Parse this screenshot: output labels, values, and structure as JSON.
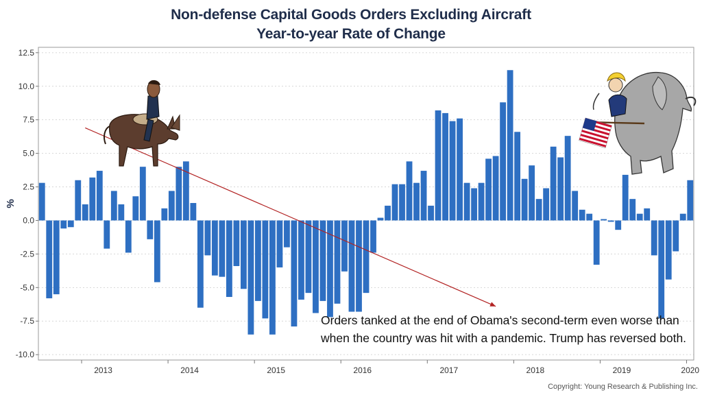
{
  "header": {
    "title": "Non-defense Capital Goods Orders Excluding Aircraft",
    "subtitle": "Year-to-year Rate of Change"
  },
  "annotation": "Orders tanked at the end of Obama's second-term even worse than when the country was hit with a pandemic. Trump has reversed both.",
  "copyright": "Copyright: Young Research & Publishing Inc.",
  "colors": {
    "bar": "#2e6fc2",
    "trend": "#b22222",
    "title": "#1f2d4a"
  },
  "illustrations": [
    "donkey-rider-cartoon",
    "elephant-flag-cartoon"
  ],
  "chart_data": {
    "type": "bar",
    "title": "Non-defense Capital Goods Orders Excluding Aircraft",
    "subtitle": "Year-to-year Rate of Change",
    "ylabel": "%",
    "xlabel": "",
    "ylim": [
      -10.4,
      12.9
    ],
    "yticks": [
      12.5,
      10.0,
      7.5,
      5.0,
      2.5,
      0.0,
      -2.5,
      -5.0,
      -7.5,
      -10.0
    ],
    "ytick_labels": [
      "12.5",
      "10.0",
      "7.5",
      "5.0",
      "2.5",
      "0.0",
      "-2.5",
      "-5.0",
      "-7.5",
      "-10.0"
    ],
    "grid": true,
    "start": "2012-07",
    "x_labels": [
      "2013",
      "2014",
      "2015",
      "2016",
      "2017",
      "2018",
      "2019",
      "2020"
    ],
    "values": [
      2.8,
      -5.8,
      -5.5,
      -0.6,
      -0.5,
      3.0,
      1.2,
      3.2,
      3.7,
      -2.1,
      2.2,
      1.2,
      -2.4,
      1.8,
      4.0,
      -1.4,
      -4.6,
      0.9,
      2.2,
      4.0,
      4.4,
      1.3,
      -6.5,
      -2.6,
      -4.1,
      -4.2,
      -5.7,
      -3.4,
      -5.1,
      -8.5,
      -6.0,
      -7.3,
      -8.5,
      -3.5,
      -2.0,
      -7.9,
      -5.9,
      -5.4,
      -6.9,
      -6.0,
      -7.2,
      -6.2,
      -3.8,
      -6.8,
      -6.8,
      -5.4,
      -2.4,
      0.2,
      1.1,
      2.7,
      2.7,
      4.4,
      2.8,
      3.7,
      1.1,
      8.2,
      8.0,
      7.4,
      7.6,
      2.8,
      2.4,
      2.8,
      4.6,
      4.8,
      8.8,
      11.2,
      6.6,
      3.1,
      4.1,
      1.6,
      2.4,
      5.5,
      4.7,
      6.3,
      2.2,
      0.8,
      0.5,
      -3.3,
      0.1,
      -0.1,
      -0.7,
      3.4,
      1.6,
      0.5,
      0.9,
      -2.6,
      -7.3,
      -4.4,
      -2.3,
      0.5,
      3.0
    ],
    "trendline": {
      "from": {
        "date": "2013-01",
        "value": 6.9
      },
      "to": {
        "date": "2017-10",
        "value": -6.4
      }
    }
  }
}
